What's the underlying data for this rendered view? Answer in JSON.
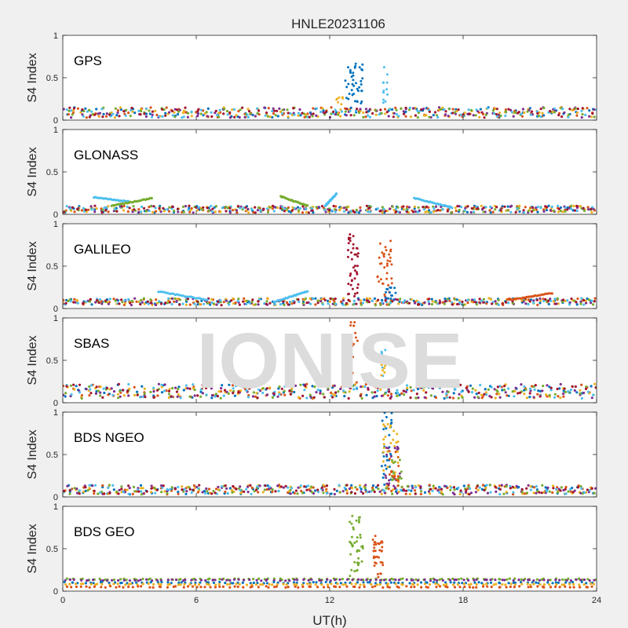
{
  "figure": {
    "title": "HNLE20231106",
    "xlabel": "UT(h)",
    "ylabel": "S4 Index",
    "watermark": "IONISE",
    "background": "#f0f0f0",
    "axes_color": "#262626",
    "series_colors": [
      "#0072bd",
      "#d95319",
      "#edb120",
      "#7e2f8e",
      "#77ac30",
      "#4dbeee",
      "#a2142f"
    ]
  },
  "chart_data": [
    {
      "type": "scatter",
      "label": "GPS",
      "xlim": [
        0,
        24
      ],
      "ylim": [
        0,
        1
      ],
      "xticks": [
        0,
        6,
        12,
        18,
        24
      ],
      "yticks": [
        0,
        0.5,
        1
      ],
      "baseline": [
        0.03,
        0.15
      ],
      "bursts": [
        {
          "x": [
            12.7,
            13.5
          ],
          "y": [
            0.15,
            0.68
          ],
          "color": "#0072bd",
          "n": 40
        },
        {
          "x": [
            14.4,
            14.6
          ],
          "y": [
            0.15,
            0.64
          ],
          "color": "#4dbeee",
          "n": 12
        },
        {
          "x": [
            12.3,
            12.6
          ],
          "y": [
            0.12,
            0.3
          ],
          "color": "#edb120",
          "n": 8
        }
      ]
    },
    {
      "type": "scatter",
      "label": "GLONASS",
      "xlim": [
        0,
        24
      ],
      "ylim": [
        0,
        1
      ],
      "xticks": [
        0,
        6,
        12,
        18,
        24
      ],
      "yticks": [
        0,
        0.5,
        1
      ],
      "baseline": [
        0.02,
        0.1
      ],
      "arcs": [
        {
          "x": [
            1.4,
            3.0
          ],
          "y": [
            0.2,
            0.15
          ],
          "color": "#4dbeee"
        },
        {
          "x": [
            2.2,
            4.0
          ],
          "y": [
            0.1,
            0.19
          ],
          "color": "#77ac30"
        },
        {
          "x": [
            9.8,
            11.0
          ],
          "y": [
            0.21,
            0.1
          ],
          "color": "#77ac30"
        },
        {
          "x": [
            15.8,
            17.5
          ],
          "y": [
            0.19,
            0.08
          ],
          "color": "#4dbeee"
        },
        {
          "x": [
            11.8,
            12.3
          ],
          "y": [
            0.1,
            0.24
          ],
          "color": "#4dbeee"
        }
      ]
    },
    {
      "type": "scatter",
      "label": "GALILEO",
      "xlim": [
        0,
        24
      ],
      "ylim": [
        0,
        1
      ],
      "xticks": [
        0,
        6,
        12,
        18,
        24
      ],
      "yticks": [
        0,
        0.5,
        1
      ],
      "baseline": [
        0.04,
        0.12
      ],
      "arcs": [
        {
          "x": [
            4.3,
            6.5
          ],
          "y": [
            0.2,
            0.1
          ],
          "color": "#4dbeee"
        },
        {
          "x": [
            9.5,
            11.0
          ],
          "y": [
            0.08,
            0.2
          ],
          "color": "#4dbeee"
        },
        {
          "x": [
            20.0,
            22.0
          ],
          "y": [
            0.1,
            0.18
          ],
          "color": "#d95319"
        }
      ],
      "bursts": [
        {
          "x": [
            12.8,
            13.3
          ],
          "y": [
            0.1,
            0.88
          ],
          "color": "#a2142f",
          "n": 40
        },
        {
          "x": [
            14.1,
            14.8
          ],
          "y": [
            0.1,
            0.8
          ],
          "color": "#d95319",
          "n": 35
        },
        {
          "x": [
            14.5,
            15.0
          ],
          "y": [
            0.05,
            0.25
          ],
          "color": "#0072bd",
          "n": 12
        }
      ]
    },
    {
      "type": "scatter",
      "label": "SBAS",
      "xlim": [
        0,
        24
      ],
      "ylim": [
        0,
        1
      ],
      "xticks": [
        0,
        6,
        12,
        18,
        24
      ],
      "yticks": [
        0,
        0.5,
        1
      ],
      "baseline": [
        0.05,
        0.22
      ],
      "bursts": [
        {
          "x": [
            12.9,
            13.3
          ],
          "y": [
            0.2,
            0.95
          ],
          "color": "#d95319",
          "n": 18
        },
        {
          "x": [
            14.3,
            14.6
          ],
          "y": [
            0.3,
            0.65
          ],
          "color": "#4dbeee",
          "n": 8
        },
        {
          "x": [
            14.2,
            14.5
          ],
          "y": [
            0.3,
            0.45
          ],
          "color": "#edb120",
          "n": 6
        }
      ]
    },
    {
      "type": "scatter",
      "label": "BDS NGEO",
      "xlim": [
        0,
        24
      ],
      "ylim": [
        0,
        1
      ],
      "xticks": [
        0,
        6,
        12,
        18,
        24
      ],
      "yticks": [
        0,
        0.5,
        1
      ],
      "baseline": [
        0.03,
        0.14
      ],
      "bursts": [
        {
          "x": [
            14.3,
            14.8
          ],
          "y": [
            0.1,
            1.0
          ],
          "color": "#0072bd",
          "n": 30
        },
        {
          "x": [
            14.4,
            15.1
          ],
          "y": [
            0.1,
            0.92
          ],
          "color": "#edb120",
          "n": 30
        },
        {
          "x": [
            14.5,
            15.2
          ],
          "y": [
            0.1,
            0.6
          ],
          "color": "#7e2f8e",
          "n": 20
        },
        {
          "x": [
            14.8,
            15.3
          ],
          "y": [
            0.1,
            0.45
          ],
          "color": "#77ac30",
          "n": 15
        },
        {
          "x": [
            14.6,
            15.1
          ],
          "y": [
            0.1,
            0.55
          ],
          "color": "#d95319",
          "n": 15
        }
      ]
    },
    {
      "type": "scatter",
      "label": "BDS GEO",
      "xlim": [
        0,
        24
      ],
      "ylim": [
        0,
        1
      ],
      "xticks": [
        0,
        6,
        12,
        18,
        24
      ],
      "yticks": [
        0,
        0.5,
        1
      ],
      "lines": [
        {
          "y": 0.14,
          "color": "#77ac30"
        },
        {
          "y": 0.13,
          "color": "#7e2f8e"
        },
        {
          "y": 0.1,
          "color": "#0072bd"
        },
        {
          "y": 0.08,
          "color": "#edb120"
        },
        {
          "y": 0.05,
          "color": "#d95319"
        }
      ],
      "bursts": [
        {
          "x": [
            12.9,
            13.5
          ],
          "y": [
            0.15,
            0.9
          ],
          "color": "#77ac30",
          "n": 40
        },
        {
          "x": [
            13.9,
            14.4
          ],
          "y": [
            0.15,
            0.65
          ],
          "color": "#d95319",
          "n": 35
        }
      ]
    }
  ]
}
